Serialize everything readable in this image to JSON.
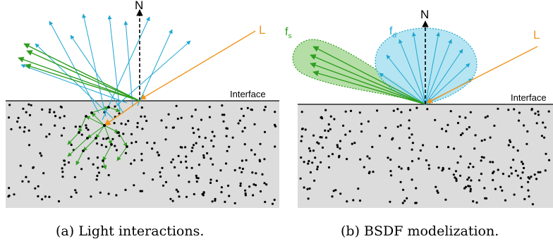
{
  "panel_a": {
    "normal_label": "N",
    "light_label": "L",
    "interface_label": "Interface",
    "caption": "(a) Light interactions."
  },
  "panel_b": {
    "normal_label": "N",
    "light_label": "L",
    "interface_label": "Interface",
    "specular_label_base": "f",
    "specular_label_sub": "s",
    "diffuse_label_base": "f",
    "diffuse_label_sub": "d",
    "caption": "(b) BSDF modelization."
  },
  "colors": {
    "medium_fill": "#dcdcdc",
    "particle": "#000000",
    "incident_light": "#f0961e",
    "specular": "#2e9e1e",
    "diffuse": "#1ea6d2",
    "specular_lobe_fill": "#a8d898",
    "diffuse_lobe_fill": "#a8e0f0",
    "label_specular": "#2e9e1e",
    "label_diffuse": "#1ea6d2",
    "label_light": "#f0961e"
  }
}
